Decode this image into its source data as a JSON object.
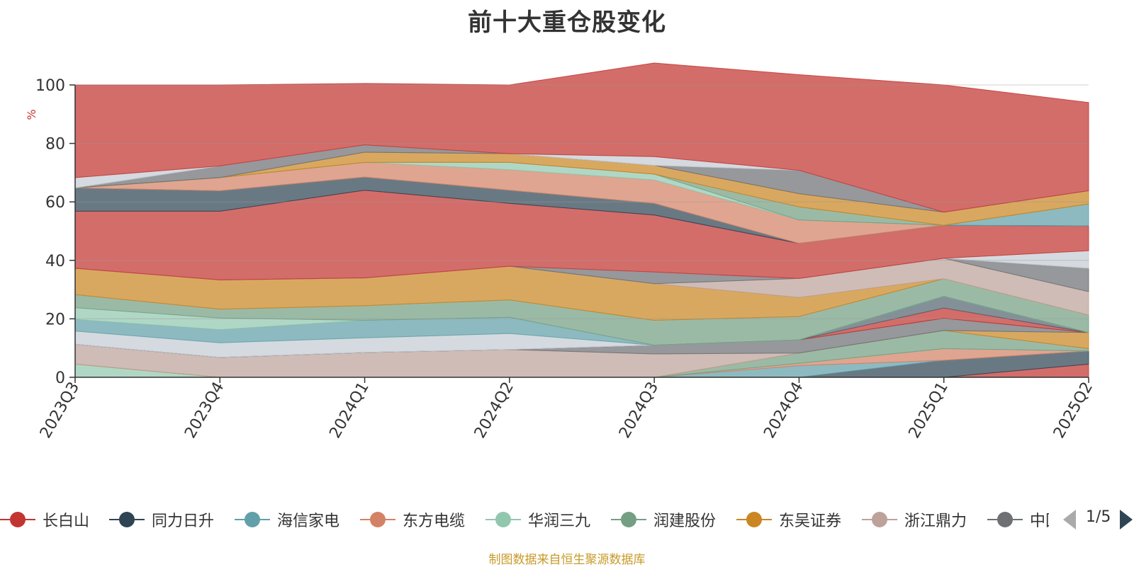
{
  "chart_data": {
    "type": "area",
    "stacked": true,
    "title": "前十大重仓股变化",
    "ylabel": "%",
    "ylim": [
      0,
      100
    ],
    "yticks": [
      0,
      20,
      40,
      60,
      80,
      100
    ],
    "grid": true,
    "categories": [
      "2023Q3",
      "2023Q4",
      "2024Q1",
      "2024Q2",
      "2024Q3",
      "2024Q4",
      "2025Q1",
      "2025Q2"
    ],
    "series": [
      {
        "name": "",
        "color": "#c23531",
        "values": [
          0,
          0,
          0,
          0,
          0,
          0,
          0,
          4.5
        ]
      },
      {
        "name": "",
        "color": "#2f4554",
        "values": [
          0,
          0,
          0,
          0,
          0,
          0,
          5.8,
          4.5
        ]
      },
      {
        "name": "",
        "color": "#61a0a8",
        "values": [
          0,
          0,
          0,
          0,
          0,
          4,
          0,
          0
        ]
      },
      {
        "name": "",
        "color": "#d48265",
        "values": [
          0,
          0,
          0,
          0,
          0,
          0.8,
          4,
          0
        ]
      },
      {
        "name": "",
        "color": "#91c7ae",
        "values": [
          4.5,
          0,
          0,
          0,
          0,
          0,
          0,
          0
        ]
      },
      {
        "name": "",
        "color": "#749f83",
        "values": [
          0,
          0,
          0,
          0,
          0,
          3.5,
          6.2,
          0.8
        ]
      },
      {
        "name": "",
        "color": "#ca8622",
        "values": [
          0,
          0,
          0,
          0,
          0,
          0,
          0,
          5.5
        ]
      },
      {
        "name": "",
        "color": "#bda29a",
        "values": [
          6.8,
          6.8,
          8.5,
          9.5,
          8,
          0,
          0,
          0
        ]
      },
      {
        "name": "",
        "color": "#6e7074",
        "values": [
          0,
          0,
          0,
          0,
          3,
          4.5,
          4.2,
          0
        ]
      },
      {
        "name": "",
        "color": "#c23531",
        "values": [
          0,
          0,
          0,
          0,
          0,
          0,
          3.5,
          0
        ]
      },
      {
        "name": "",
        "color": "#546570",
        "values": [
          0,
          0,
          0,
          0,
          0,
          0,
          4,
          0
        ]
      },
      {
        "name": "",
        "color": "#c4ccd3",
        "values": [
          4.5,
          5,
          5,
          5.5,
          0,
          0,
          0,
          0
        ]
      },
      {
        "name": "",
        "color": "#61a0a8",
        "values": [
          4,
          4.5,
          6,
          5.5,
          0,
          0,
          0,
          0
        ]
      },
      {
        "name": "",
        "color": "#91c7ae",
        "values": [
          4,
          4,
          0,
          0,
          0,
          0,
          0,
          0
        ]
      },
      {
        "name": "",
        "color": "#749f83",
        "values": [
          4.5,
          3,
          5,
          6,
          8.5,
          8,
          6,
          6
        ]
      },
      {
        "name": "",
        "color": "#ca8622",
        "values": [
          9,
          10,
          9.5,
          11.5,
          12.5,
          6.5,
          0,
          0
        ]
      },
      {
        "name": "",
        "color": "#bda29a",
        "values": [
          0,
          0,
          0,
          0,
          0,
          6.5,
          7,
          8
        ]
      },
      {
        "name": "",
        "color": "#6e7074",
        "values": [
          0,
          0,
          0,
          0,
          4,
          0,
          0,
          8
        ]
      },
      {
        "name": "",
        "color": "#c4ccd3",
        "values": [
          0,
          0,
          0,
          0,
          0,
          0,
          0,
          6
        ]
      },
      {
        "name": "",
        "color": "#c23531",
        "values": [
          19.5,
          23.5,
          30,
          21.5,
          19.5,
          12,
          11.3,
          8.5
        ]
      },
      {
        "name": "",
        "color": "#2f4554",
        "values": [
          8,
          7,
          4.5,
          4.5,
          4,
          0,
          0,
          0
        ]
      },
      {
        "name": "",
        "color": "#61a0a8",
        "values": [
          0,
          0,
          0,
          0,
          0,
          0,
          0,
          7.5
        ]
      },
      {
        "name": "",
        "color": "#d48265",
        "values": [
          0,
          4.5,
          5,
          7,
          8,
          8,
          0,
          0
        ]
      },
      {
        "name": "",
        "color": "#91c7ae",
        "values": [
          0,
          0,
          0,
          2.5,
          2,
          0,
          0,
          0
        ]
      },
      {
        "name": "",
        "color": "#749f83",
        "values": [
          0,
          0,
          0,
          0,
          0,
          4.5,
          0,
          0
        ]
      },
      {
        "name": "",
        "color": "#ca8622",
        "values": [
          0,
          0,
          3.5,
          3,
          3,
          4.5,
          4.5,
          4.5
        ]
      },
      {
        "name": "",
        "color": "#6e7074",
        "values": [
          0,
          4,
          2.5,
          0,
          0,
          8,
          0,
          0
        ]
      },
      {
        "name": "",
        "color": "#c4ccd3",
        "values": [
          3.5,
          0,
          0,
          0,
          3,
          0,
          0,
          0
        ]
      },
      {
        "name": "",
        "color": "#c23531",
        "values": [
          31.7,
          27.7,
          21,
          23.5,
          32,
          32.7,
          43.5,
          30.2
        ]
      }
    ]
  },
  "legend": {
    "items": [
      {
        "label": "长白山",
        "color": "#c23531"
      },
      {
        "label": "同力日升",
        "color": "#2f4554"
      },
      {
        "label": "海信家电",
        "color": "#61a0a8"
      },
      {
        "label": "东方电缆",
        "color": "#d48265"
      },
      {
        "label": "华润三九",
        "color": "#91c7ae"
      },
      {
        "label": "润建股份",
        "color": "#749f83"
      },
      {
        "label": "东吴证券",
        "color": "#ca8622"
      },
      {
        "label": "浙江鼎力",
        "color": "#bda29a"
      },
      {
        "label": "中国",
        "color": "#6e7074"
      }
    ],
    "page": "1/5"
  },
  "source_note": "制图数据来自恒生聚源数据库"
}
